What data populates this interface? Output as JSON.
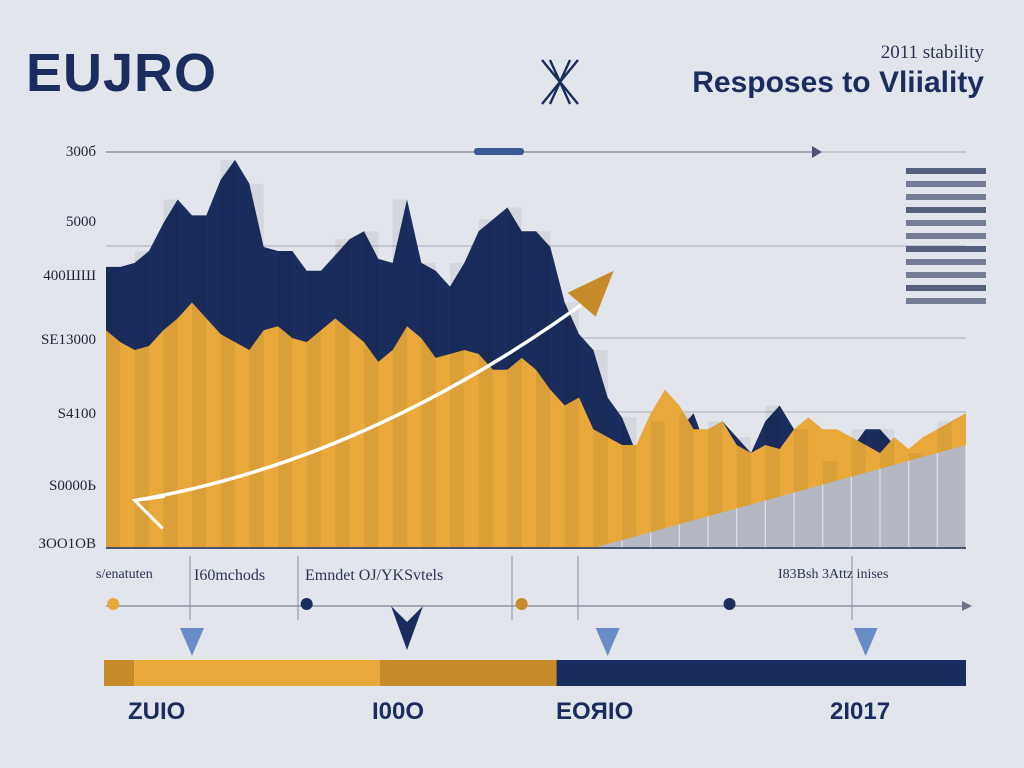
{
  "brand": "EUJRO",
  "header": {
    "subtitle": "2011 stability",
    "title": "Resposes to Vliiality"
  },
  "icons": {
    "x_mark": "crossed-x-icon",
    "legend": "striped-legend-icon"
  },
  "colors": {
    "background": "#e3e5ec",
    "navy": "#1b2d5e",
    "gold": "#e8a93a",
    "gray_wedge": "#b5b8c2",
    "arrow_accent": "#c88b2a",
    "axis": "#8a90a0"
  },
  "chart_data": {
    "type": "area",
    "title": "Resposes to Vliiality",
    "subtitle": "2011 stability",
    "y_tick_labels": [
      "300б",
      "5000",
      "400ШШ",
      "SE13000",
      "S4100",
      "S0000Ь",
      "ЗОО1ОВ"
    ],
    "x": [
      0,
      1,
      2,
      3,
      4,
      5,
      6,
      7,
      8,
      9,
      10,
      11,
      12,
      13,
      14,
      15,
      16,
      17,
      18,
      19,
      20,
      21,
      22,
      23,
      24,
      25,
      26,
      27,
      28,
      29,
      30,
      31,
      32,
      33,
      34,
      35,
      36,
      37,
      38,
      39,
      40,
      41,
      42,
      43,
      44,
      45,
      46,
      47,
      48,
      49,
      50,
      51,
      52,
      53,
      54,
      55,
      56,
      57,
      58,
      59,
      60
    ],
    "ylim": [
      0,
      100
    ],
    "xlim": [
      0,
      60
    ],
    "grid": true,
    "series": [
      {
        "values": [
          71,
          71,
          72,
          75,
          82,
          88,
          84,
          84,
          93,
          98,
          92,
          76,
          75,
          75,
          70,
          70,
          74,
          78,
          80,
          73,
          72,
          88,
          72,
          70,
          66,
          72,
          80,
          83,
          86,
          80,
          80,
          76,
          62,
          54,
          50,
          38,
          33,
          24,
          26,
          32,
          30,
          34,
          24,
          32,
          28,
          24,
          32,
          36,
          30,
          18,
          22,
          20,
          25,
          30,
          30,
          26,
          22,
          24,
          28,
          32,
          34
        ]
      },
      {
        "values": [
          55,
          52,
          50,
          51,
          55,
          58,
          62,
          58,
          54,
          52,
          50,
          55,
          56,
          53,
          52,
          55,
          58,
          55,
          52,
          47,
          50,
          56,
          53,
          48,
          49,
          50,
          49,
          45,
          45,
          48,
          45,
          40,
          36,
          38,
          30,
          28,
          26,
          26,
          34,
          40,
          36,
          30,
          30,
          32,
          26,
          24,
          26,
          25,
          30,
          33,
          30,
          30,
          28,
          26,
          24,
          28,
          25,
          28,
          30,
          32,
          34
        ]
      }
    ],
    "gray_wedge": {
      "start_x": 30,
      "values": [
        0,
        0,
        0,
        0,
        0,
        1,
        2,
        3,
        4,
        5,
        6,
        7,
        8,
        9,
        10,
        11,
        12,
        13,
        14,
        15,
        16,
        17,
        18,
        19,
        20,
        21,
        22,
        23,
        24,
        25,
        26
      ]
    },
    "trend_arrow": {
      "from": [
        2,
        12
      ],
      "to": [
        35,
        68
      ]
    },
    "annotation_labels": [
      {
        "text": "s/enatuten",
        "x": 0.0,
        "x_units": "index"
      },
      {
        "text": "I60mchods",
        "x": 8.0,
        "x_units": "index"
      },
      {
        "text": "Emndet OJ/YKSvtels",
        "x": 18.5,
        "x_units": "index"
      },
      {
        "text": "I83Bsh 3Attz inises",
        "x": 48.0,
        "x_units": "index"
      }
    ],
    "year_labels": [
      "ZUIO",
      "I00O",
      "EOЯIO",
      "2I017"
    ],
    "progress_segments": [
      {
        "color": "#c88b2a",
        "fraction": 0.035
      },
      {
        "color": "#e8a93a",
        "fraction": 0.285
      },
      {
        "color": "#c88b2a",
        "fraction": 0.205
      },
      {
        "color": "#1b2d5e",
        "fraction": 0.475
      }
    ],
    "timeline_dots": [
      {
        "x": 0.5,
        "color": "#e8a93a"
      },
      {
        "x": 14.0,
        "color": "#1b2d5e"
      },
      {
        "x": 29.0,
        "color": "#c88b2a"
      },
      {
        "x": 43.5,
        "color": "#1b2d5e"
      }
    ],
    "down_arrows": [
      {
        "x": 6.0,
        "color": "#6a8cc6"
      },
      {
        "x": 21.0,
        "color": "#1b2d5e"
      },
      {
        "x": 35.0,
        "color": "#6a8cc6"
      },
      {
        "x": 53.0,
        "color": "#6a8cc6"
      }
    ]
  }
}
